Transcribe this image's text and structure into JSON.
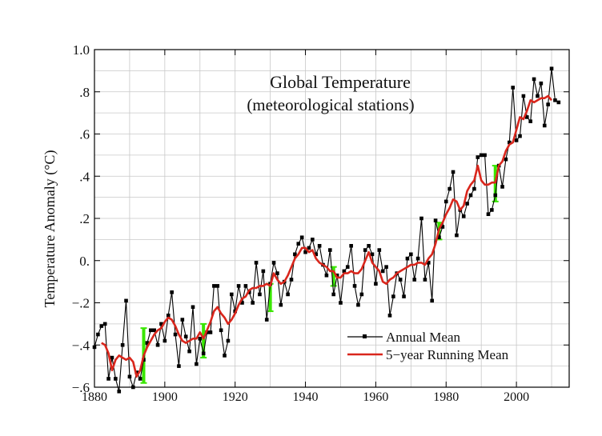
{
  "chart_data": {
    "type": "line",
    "title": "Global Temperature",
    "subtitle": "(meteorological stations)",
    "xlabel": "",
    "ylabel": "Temperature Anomaly (°C)",
    "xlim": [
      1880,
      2015
    ],
    "ylim": [
      -0.6,
      1.0
    ],
    "x_ticks": [
      1880,
      1900,
      1920,
      1940,
      1960,
      1980,
      2000
    ],
    "y_ticks": [
      -0.6,
      -0.4,
      -0.2,
      0.0,
      0.2,
      0.4,
      0.6,
      0.8,
      1.0
    ],
    "y_tick_labels": [
      "−.6",
      "−.4",
      "−.2",
      "0.",
      ".2",
      ".4",
      ".6",
      ".8",
      "1.0"
    ],
    "grid": true,
    "legend_position": "bottom-right",
    "colors": {
      "annual": "#000000",
      "running": "#d9261c",
      "uncertainty": "#39e600",
      "grid": "#c8c8c8",
      "frame": "#000000"
    },
    "series": [
      {
        "name": "Annual Mean",
        "style": "line-with-square-markers",
        "x": [
          1880,
          1881,
          1882,
          1883,
          1884,
          1885,
          1886,
          1887,
          1888,
          1889,
          1890,
          1891,
          1892,
          1893,
          1894,
          1895,
          1896,
          1897,
          1898,
          1899,
          1900,
          1901,
          1902,
          1903,
          1904,
          1905,
          1906,
          1907,
          1908,
          1909,
          1910,
          1911,
          1912,
          1913,
          1914,
          1915,
          1916,
          1917,
          1918,
          1919,
          1920,
          1921,
          1922,
          1923,
          1924,
          1925,
          1926,
          1927,
          1928,
          1929,
          1930,
          1931,
          1932,
          1933,
          1934,
          1935,
          1936,
          1937,
          1938,
          1939,
          1940,
          1941,
          1942,
          1943,
          1944,
          1945,
          1946,
          1947,
          1948,
          1949,
          1950,
          1951,
          1952,
          1953,
          1954,
          1955,
          1956,
          1957,
          1958,
          1959,
          1960,
          1961,
          1962,
          1963,
          1964,
          1965,
          1966,
          1967,
          1968,
          1969,
          1970,
          1971,
          1972,
          1973,
          1974,
          1975,
          1976,
          1977,
          1978,
          1979,
          1980,
          1981,
          1982,
          1983,
          1984,
          1985,
          1986,
          1987,
          1988,
          1989,
          1990,
          1991,
          1992,
          1993,
          1994,
          1995,
          1996,
          1997,
          1998,
          1999,
          2000,
          2001,
          2002,
          2003,
          2004,
          2005,
          2006,
          2007,
          2008,
          2009,
          2010,
          2011,
          2012
        ],
        "values": [
          -0.41,
          -0.35,
          -0.31,
          -0.3,
          -0.56,
          -0.46,
          -0.56,
          -0.62,
          -0.4,
          -0.19,
          -0.55,
          -0.6,
          -0.53,
          -0.56,
          -0.47,
          -0.39,
          -0.33,
          -0.33,
          -0.4,
          -0.3,
          -0.38,
          -0.26,
          -0.15,
          -0.35,
          -0.5,
          -0.28,
          -0.36,
          -0.43,
          -0.22,
          -0.49,
          -0.37,
          -0.44,
          -0.34,
          -0.34,
          -0.12,
          -0.12,
          -0.33,
          -0.45,
          -0.38,
          -0.16,
          -0.24,
          -0.12,
          -0.2,
          -0.12,
          -0.15,
          -0.2,
          -0.01,
          -0.16,
          -0.05,
          -0.28,
          -0.11,
          -0.01,
          -0.06,
          -0.21,
          -0.1,
          -0.16,
          -0.09,
          0.03,
          0.08,
          0.11,
          0.04,
          0.06,
          0.1,
          0.03,
          0.07,
          -0.02,
          -0.07,
          0.05,
          -0.16,
          -0.07,
          -0.2,
          -0.05,
          -0.03,
          0.07,
          -0.12,
          -0.21,
          -0.16,
          0.05,
          0.07,
          0.03,
          -0.11,
          0.05,
          -0.05,
          -0.03,
          -0.26,
          -0.17,
          -0.06,
          -0.09,
          -0.17,
          0.01,
          0.03,
          -0.09,
          0.01,
          0.2,
          -0.09,
          -0.01,
          -0.19,
          0.19,
          0.11,
          0.16,
          0.28,
          0.34,
          0.42,
          0.12,
          0.24,
          0.21,
          0.27,
          0.31,
          0.34,
          0.49,
          0.5,
          0.5,
          0.22,
          0.24,
          0.31,
          0.45,
          0.35,
          0.48,
          0.56,
          0.82,
          0.57,
          0.59,
          0.78,
          0.68,
          0.66,
          0.86,
          0.78,
          0.84,
          0.64,
          0.74,
          0.91,
          0.76,
          0.75
        ]
      },
      {
        "name": "5−year Running Mean",
        "style": "line",
        "x": [
          1882,
          1883,
          1884,
          1885,
          1886,
          1887,
          1888,
          1889,
          1890,
          1891,
          1892,
          1893,
          1894,
          1895,
          1896,
          1897,
          1898,
          1899,
          1900,
          1901,
          1902,
          1903,
          1904,
          1905,
          1906,
          1907,
          1908,
          1909,
          1910,
          1911,
          1912,
          1913,
          1914,
          1915,
          1916,
          1917,
          1918,
          1919,
          1920,
          1921,
          1922,
          1923,
          1924,
          1925,
          1926,
          1927,
          1928,
          1929,
          1930,
          1931,
          1932,
          1933,
          1934,
          1935,
          1936,
          1937,
          1938,
          1939,
          1940,
          1941,
          1942,
          1943,
          1944,
          1945,
          1946,
          1947,
          1948,
          1949,
          1950,
          1951,
          1952,
          1953,
          1954,
          1955,
          1956,
          1957,
          1958,
          1959,
          1960,
          1961,
          1962,
          1963,
          1964,
          1965,
          1966,
          1967,
          1968,
          1969,
          1970,
          1971,
          1972,
          1973,
          1974,
          1975,
          1976,
          1977,
          1978,
          1979,
          1980,
          1981,
          1982,
          1983,
          1984,
          1985,
          1986,
          1987,
          1988,
          1989,
          1990,
          1991,
          1992,
          1993,
          1994,
          1995,
          1996,
          1997,
          1998,
          1999,
          2000,
          2001,
          2002,
          2003,
          2004,
          2005,
          2006,
          2007,
          2008,
          2009,
          2010
        ],
        "values": [
          -0.39,
          -0.4,
          -0.44,
          -0.52,
          -0.47,
          -0.45,
          -0.46,
          -0.47,
          -0.46,
          -0.48,
          -0.55,
          -0.52,
          -0.45,
          -0.41,
          -0.38,
          -0.35,
          -0.33,
          -0.32,
          -0.29,
          -0.27,
          -0.28,
          -0.31,
          -0.35,
          -0.38,
          -0.39,
          -0.38,
          -0.37,
          -0.37,
          -0.34,
          -0.37,
          -0.33,
          -0.29,
          -0.24,
          -0.22,
          -0.25,
          -0.27,
          -0.3,
          -0.28,
          -0.25,
          -0.21,
          -0.18,
          -0.17,
          -0.14,
          -0.13,
          -0.13,
          -0.12,
          -0.12,
          -0.11,
          -0.12,
          -0.06,
          -0.09,
          -0.11,
          -0.1,
          -0.07,
          -0.03,
          0.01,
          0.03,
          0.06,
          0.06,
          0.04,
          0.05,
          0.01,
          -0.01,
          -0.02,
          -0.03,
          -0.05,
          -0.05,
          -0.08,
          -0.08,
          -0.06,
          -0.06,
          -0.05,
          -0.06,
          -0.06,
          -0.04,
          0.0,
          0.04,
          -0.01,
          -0.03,
          -0.05,
          -0.1,
          -0.11,
          -0.09,
          -0.08,
          -0.06,
          -0.05,
          -0.04,
          -0.03,
          -0.02,
          -0.02,
          -0.01,
          -0.01,
          -0.02,
          0.01,
          0.03,
          0.08,
          0.15,
          0.18,
          0.22,
          0.25,
          0.29,
          0.28,
          0.24,
          0.26,
          0.33,
          0.36,
          0.38,
          0.45,
          0.38,
          0.36,
          0.36,
          0.37,
          0.37,
          0.45,
          0.47,
          0.52,
          0.55,
          0.56,
          0.62,
          0.68,
          0.67,
          0.71,
          0.76,
          0.75,
          0.76,
          0.77,
          0.77,
          0.78,
          0.76
        ]
      }
    ],
    "uncertainty_bars": [
      {
        "x": 1894,
        "low": -0.58,
        "high": -0.32
      },
      {
        "x": 1911,
        "low": -0.46,
        "high": -0.3
      },
      {
        "x": 1930,
        "low": -0.24,
        "high": -0.11
      },
      {
        "x": 1948,
        "low": -0.12,
        "high": -0.03
      },
      {
        "x": 1978,
        "low": 0.1,
        "high": 0.18
      },
      {
        "x": 1994,
        "low": 0.28,
        "high": 0.45
      }
    ],
    "legend": [
      {
        "label": "Annual Mean",
        "style": "line-with-square-markers"
      },
      {
        "label": "5−year Running Mean",
        "style": "line"
      }
    ]
  }
}
